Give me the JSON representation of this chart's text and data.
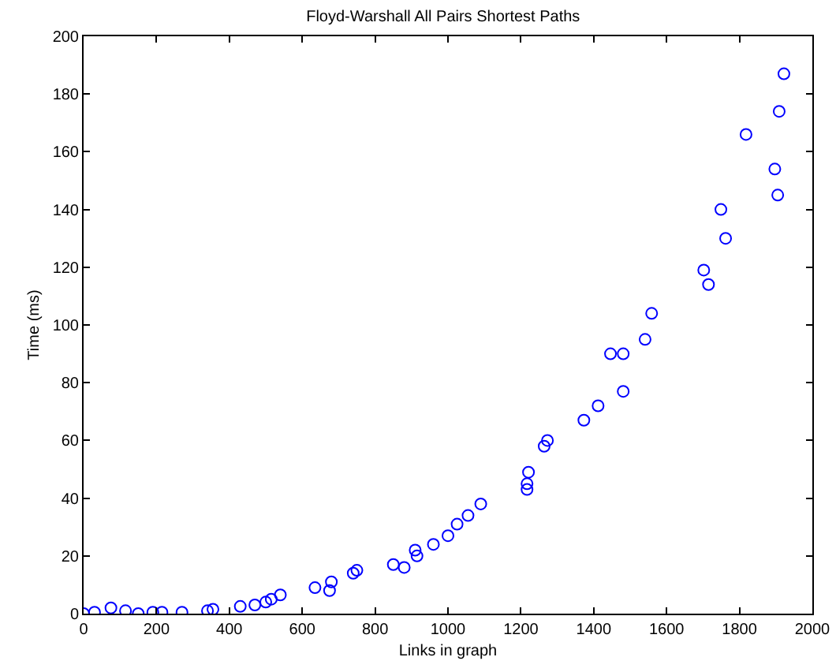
{
  "chart_data": {
    "type": "scatter",
    "title": "Floyd-Warshall All Pairs Shortest Paths",
    "xlabel": "Links in graph",
    "ylabel": "Time (ms)",
    "x": [
      0,
      30,
      75,
      115,
      150,
      190,
      215,
      270,
      340,
      355,
      430,
      470,
      500,
      515,
      540,
      635,
      675,
      680,
      740,
      750,
      850,
      880,
      910,
      915,
      960,
      1000,
      1025,
      1055,
      1090,
      1217,
      1217,
      1221,
      1264,
      1273,
      1373,
      1412,
      1481,
      1446,
      1481,
      1541,
      1559,
      1702,
      1715,
      1749,
      1762,
      1818,
      1897,
      1905,
      1909,
      1922
    ],
    "values": [
      0,
      0.5,
      2,
      1,
      0,
      0.5,
      0.5,
      0.5,
      1,
      1.5,
      2.5,
      3,
      4,
      5,
      6.5,
      9,
      8,
      11,
      14,
      15,
      17,
      16,
      22,
      20,
      24,
      27,
      31,
      34,
      38,
      43,
      45,
      49,
      58,
      60,
      67,
      72,
      77,
      90,
      90,
      95,
      104,
      119,
      114,
      140,
      130,
      166,
      154,
      145,
      174,
      187
    ],
    "color": "#0000ff",
    "marker": "circle",
    "grid": false,
    "xlim": [
      0,
      2000
    ],
    "xticks": [
      0,
      200,
      400,
      600,
      800,
      1000,
      1200,
      1400,
      1600,
      1800,
      2000
    ],
    "ylim": [
      0,
      200
    ],
    "yticks": [
      0,
      20,
      40,
      60,
      80,
      100,
      120,
      140,
      160,
      180,
      200
    ]
  }
}
